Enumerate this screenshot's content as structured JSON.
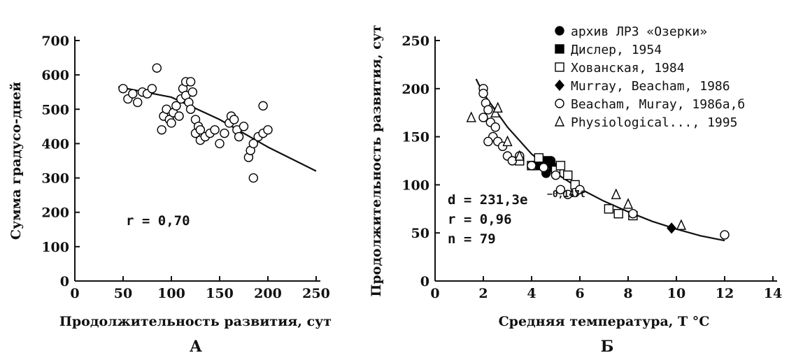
{
  "chart_data": [
    {
      "type": "scatter",
      "panel": "А",
      "xlabel": "Продолжительность развития, сут",
      "ylabel": "Сумма градусо-дней",
      "xlim": [
        0,
        250
      ],
      "xticks": [
        0,
        50,
        100,
        150,
        200,
        250
      ],
      "ylim": [
        0,
        700
      ],
      "yticks": [
        0,
        100,
        200,
        300,
        400,
        500,
        600,
        700
      ],
      "annotations": [
        "r = 0,70"
      ],
      "series": [
        {
          "marker": "circle-open",
          "color": "#000000",
          "x": [
            50,
            55,
            60,
            65,
            70,
            75,
            80,
            85,
            90,
            92,
            95,
            98,
            100,
            102,
            105,
            108,
            110,
            112,
            115,
            115,
            118,
            120,
            120,
            122,
            125,
            125,
            128,
            130,
            130,
            135,
            140,
            145,
            150,
            155,
            160,
            162,
            165,
            168,
            170,
            175,
            180,
            182,
            185,
            185,
            190,
            195,
            195,
            200
          ],
          "values": [
            560,
            530,
            545,
            520,
            550,
            545,
            560,
            620,
            440,
            480,
            500,
            470,
            460,
            490,
            510,
            480,
            530,
            560,
            580,
            540,
            520,
            580,
            500,
            550,
            470,
            430,
            450,
            440,
            410,
            420,
            430,
            440,
            400,
            430,
            460,
            480,
            470,
            440,
            420,
            450,
            360,
            380,
            400,
            300,
            420,
            510,
            430,
            440
          ]
        }
      ],
      "fit": {
        "x": [
          45,
          100,
          150,
          200,
          250
        ],
        "values": [
          565,
          535,
          470,
          390,
          320
        ]
      }
    },
    {
      "type": "scatter",
      "panel": "Б",
      "xlabel": "Средняя температура, T °C",
      "ylabel": "Продолжительность развития, сут",
      "xlim": [
        0,
        14
      ],
      "xticks": [
        0,
        2,
        4,
        6,
        8,
        10,
        12,
        14
      ],
      "ylim": [
        0,
        250
      ],
      "yticks": [
        0,
        50,
        100,
        150,
        200,
        250
      ],
      "annotations": [
        "d = 231,3e",
        "−0,147t",
        "r = 0,96",
        "n = 79"
      ],
      "series": [
        {
          "name": "архив ЛРЗ «Озерки»",
          "marker": "circle-filled",
          "color": "#000000",
          "x": [
            4.5,
            4.8,
            5.0,
            4.3,
            4.6
          ],
          "values": [
            120,
            125,
            118,
            122,
            112
          ]
        },
        {
          "name": "Дислер, 1954",
          "marker": "square-filled",
          "color": "#000000",
          "x": [
            4.2,
            4.6,
            4.9
          ],
          "values": [
            120,
            125,
            118
          ]
        },
        {
          "name": "Хованская, 1984",
          "marker": "square-open",
          "color": "#000000",
          "x": [
            3.5,
            4.0,
            4.3,
            5.0,
            5.5,
            5.8,
            7.2,
            7.6,
            8.2,
            5.2
          ],
          "values": [
            125,
            120,
            128,
            115,
            110,
            100,
            75,
            70,
            68,
            120
          ]
        },
        {
          "name": "Murray, Beacham, 1986",
          "marker": "diamond-filled",
          "color": "#000000",
          "x": [
            9.8,
            4.6
          ],
          "values": [
            55,
            120
          ]
        },
        {
          "name": "Beacham, Muray,  1986а,б",
          "marker": "circle-open",
          "color": "#000000",
          "x": [
            2.0,
            2.0,
            2.1,
            2.2,
            2.0,
            2.3,
            2.5,
            2.4,
            2.6,
            2.2,
            2.8,
            3.0,
            3.2,
            3.5,
            4.0,
            4.5,
            5.0,
            5.2,
            5.5,
            5.8,
            6.0,
            8.2,
            12.0
          ],
          "values": [
            200,
            195,
            185,
            178,
            170,
            165,
            160,
            150,
            145,
            145,
            140,
            130,
            125,
            130,
            120,
            118,
            110,
            95,
            90,
            92,
            95,
            70,
            48
          ]
        },
        {
          "name": "Physiological..., 1995",
          "marker": "triangle-open",
          "color": "#000000",
          "x": [
            1.5,
            2.5,
            2.6,
            7.5,
            8.0,
            10.2,
            3.0,
            3.5
          ],
          "values": [
            170,
            175,
            180,
            90,
            80,
            58,
            145,
            130
          ]
        }
      ],
      "fit": {
        "x": [
          1.7,
          2,
          3,
          4,
          5,
          6,
          7,
          8,
          9,
          10,
          11,
          12
        ],
        "values": [
          210,
          195,
          160,
          132,
          112,
          96,
          83,
          72,
          62,
          54,
          47,
          42
        ]
      }
    }
  ]
}
